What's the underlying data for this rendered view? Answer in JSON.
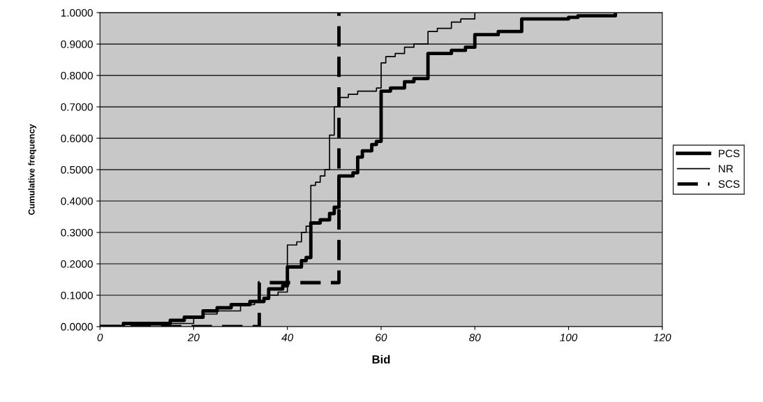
{
  "chart_data": {
    "type": "step",
    "xlabel": "Bid",
    "ylabel": "Cumulative frequency",
    "xlim": [
      0,
      120
    ],
    "ylim": [
      0,
      1
    ],
    "xticks": [
      0,
      20,
      40,
      60,
      80,
      100,
      120
    ],
    "yticks": [
      {
        "value": 0,
        "label": "0.0000"
      },
      {
        "value": 0.1,
        "label": "0.1000"
      },
      {
        "value": 0.2,
        "label": "0.2000"
      },
      {
        "value": 0.3,
        "label": "0.3000"
      },
      {
        "value": 0.4,
        "label": "0.4000"
      },
      {
        "value": 0.5,
        "label": "0.5000"
      },
      {
        "value": 0.6,
        "label": "0.6000"
      },
      {
        "value": 0.7,
        "label": "0.7000"
      },
      {
        "value": 0.8,
        "label": "0.8000"
      },
      {
        "value": 0.9,
        "label": "0.9000"
      },
      {
        "value": 1,
        "label": "1.0000"
      }
    ],
    "grid": "y",
    "legend": "right",
    "series": [
      {
        "name": "PCS",
        "color": "#000000",
        "line_style": "solid",
        "x": [
          0,
          5,
          15,
          18,
          22,
          25,
          28,
          32,
          35,
          36,
          39,
          40,
          43,
          44,
          45,
          47,
          49,
          50,
          51,
          54,
          55,
          56,
          58,
          59,
          60,
          62,
          65,
          67,
          70,
          75,
          78,
          80,
          85,
          90,
          100,
          102,
          110
        ],
        "values": [
          0,
          0.01,
          0.02,
          0.03,
          0.05,
          0.06,
          0.07,
          0.08,
          0.09,
          0.12,
          0.13,
          0.19,
          0.21,
          0.22,
          0.33,
          0.34,
          0.36,
          0.38,
          0.48,
          0.49,
          0.54,
          0.56,
          0.58,
          0.59,
          0.75,
          0.76,
          0.78,
          0.79,
          0.87,
          0.88,
          0.89,
          0.93,
          0.94,
          0.98,
          0.985,
          0.99,
          1.0
        ]
      },
      {
        "name": "NR",
        "color": "#000000",
        "line_style": "solid",
        "x": [
          0,
          10,
          13,
          20,
          22,
          25,
          30,
          33,
          35,
          36,
          38,
          40,
          42,
          43,
          44,
          45,
          46,
          47,
          48,
          49,
          50,
          51,
          53,
          55,
          59,
          60,
          61,
          63,
          65,
          67,
          70,
          72,
          75,
          77,
          80
        ],
        "values": [
          0,
          0.005,
          0.01,
          0.03,
          0.04,
          0.05,
          0.07,
          0.08,
          0.09,
          0.1,
          0.11,
          0.26,
          0.27,
          0.3,
          0.32,
          0.45,
          0.46,
          0.48,
          0.5,
          0.61,
          0.7,
          0.73,
          0.74,
          0.75,
          0.76,
          0.84,
          0.86,
          0.87,
          0.89,
          0.9,
          0.94,
          0.95,
          0.97,
          0.98,
          1.0
        ]
      },
      {
        "name": "SCS",
        "color": "#000000",
        "line_style": "dashed",
        "x": [
          0,
          34,
          51
        ],
        "values": [
          0,
          0.14,
          1.0
        ]
      }
    ]
  }
}
